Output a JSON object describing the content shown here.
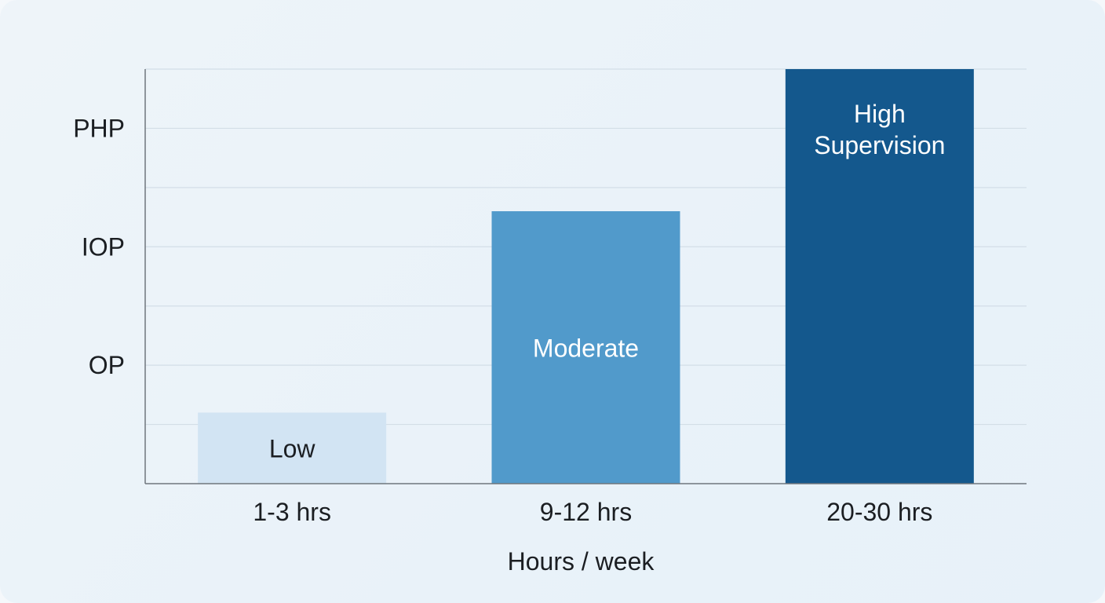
{
  "chart_data": {
    "type": "bar",
    "title": "",
    "xlabel": "Hours / week",
    "ylabel": "",
    "categories": [
      "1-3 hrs",
      "9-12 hrs",
      "20-30 hrs"
    ],
    "y_ticks": [
      "OP",
      "IOP",
      "PHP"
    ],
    "ylim": [
      0,
      3.5
    ],
    "series": [
      {
        "values": [
          0.6,
          2.3,
          3.5
        ],
        "bar_labels": [
          "Low",
          "Moderate",
          "High Supervision"
        ],
        "colors": [
          "#d2e4f3",
          "#519acb",
          "#14588d"
        ],
        "label_colors": [
          "#1b1e22",
          "#ffffff",
          "#ffffff"
        ]
      }
    ],
    "grid": true
  }
}
